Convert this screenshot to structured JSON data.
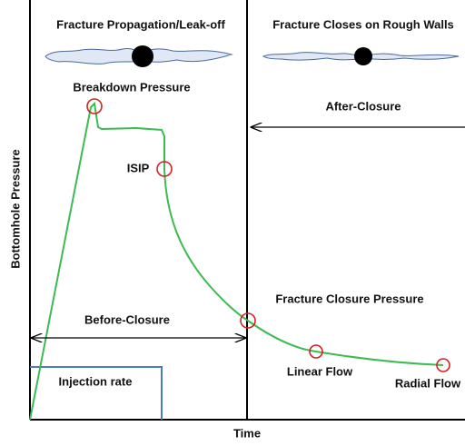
{
  "header": {
    "left_title": "Fracture Propagation/Leak-off",
    "right_title": "Fracture Closes on Rough Walls"
  },
  "axes": {
    "y_label": "Bottomhole  Pressure",
    "x_label": "Time"
  },
  "regions": {
    "before": "Before-Closure",
    "after": "After-Closure"
  },
  "points": {
    "breakdown": "Breakdown Pressure",
    "isip": "ISIP",
    "closure": "Fracture Closure Pressure",
    "linear": "Linear Flow",
    "radial": "Radial Flow"
  },
  "injection": "Injection rate"
}
